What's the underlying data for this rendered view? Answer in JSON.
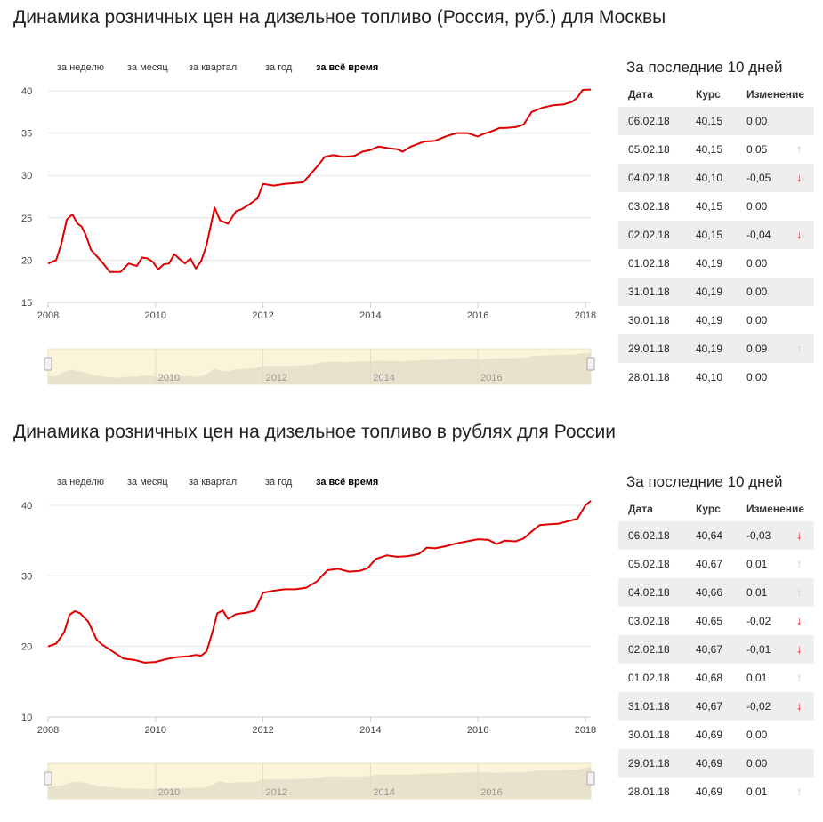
{
  "periods": [
    "за неделю",
    "за месяц",
    "за квартал",
    "за год",
    "за всё время"
  ],
  "active_period": "за всё время",
  "side_title": "За последние 10 дней",
  "table_headers": {
    "date": "Дата",
    "rate": "Курс",
    "change": "Изменение"
  },
  "colors": {
    "line": "#e00000",
    "grid": "#e6e6e6",
    "navigator_bg": "#fcf4d8",
    "navigator_fill": "#e8e2cc",
    "row_alt": "#eeeeee"
  },
  "charts": [
    {
      "title": "Динамика розничных цен на дизельное топливо (Россия, руб.) для Москвы",
      "chart_data": {
        "type": "line",
        "title": "Динамика розничных цен на дизельное топливо (Россия, руб.) для Москвы",
        "xlabel": "",
        "ylabel": "",
        "xlim": [
          2008,
          2018.1
        ],
        "ylim": [
          15,
          40
        ],
        "yticks": [
          15,
          20,
          25,
          30,
          35,
          40
        ],
        "xticks": [
          2008,
          2010,
          2012,
          2014,
          2016,
          2018
        ],
        "navigator_ticks": [
          2010,
          2012,
          2014,
          2016
        ],
        "grid": true,
        "series": [
          {
            "x": [
              2008.0,
              2008.15,
              2008.25,
              2008.35,
              2008.45,
              2008.55,
              2008.62,
              2008.7,
              2008.8,
              2008.9,
              2009.0,
              2009.15,
              2009.35,
              2009.5,
              2009.65,
              2009.75,
              2009.85,
              2009.95,
              2010.05,
              2010.15,
              2010.25,
              2010.35,
              2010.45,
              2010.55,
              2010.65,
              2010.75,
              2010.85,
              2010.95,
              2011.1,
              2011.2,
              2011.35,
              2011.5,
              2011.6,
              2011.75,
              2011.9,
              2012.0,
              2012.2,
              2012.4,
              2012.6,
              2012.75,
              2012.85,
              2013.0,
              2013.15,
              2013.3,
              2013.5,
              2013.7,
              2013.85,
              2014.0,
              2014.15,
              2014.35,
              2014.5,
              2014.6,
              2014.75,
              2015.0,
              2015.2,
              2015.4,
              2015.6,
              2015.8,
              2016.0,
              2016.1,
              2016.25,
              2016.4,
              2016.5,
              2016.7,
              2016.85,
              2017.0,
              2017.2,
              2017.4,
              2017.6,
              2017.75,
              2017.85,
              2017.95,
              2018.05,
              2018.1
            ],
            "y": [
              19.6,
              20.0,
              22.0,
              24.8,
              25.4,
              24.3,
              24.0,
              23.0,
              21.2,
              20.5,
              19.8,
              18.6,
              18.6,
              19.6,
              19.3,
              20.3,
              20.2,
              19.8,
              18.9,
              19.5,
              19.6,
              20.7,
              20.1,
              19.6,
              20.2,
              19.0,
              19.9,
              21.8,
              26.2,
              24.7,
              24.3,
              25.8,
              26.0,
              26.6,
              27.3,
              29.0,
              28.8,
              29.0,
              29.1,
              29.2,
              29.9,
              31.0,
              32.2,
              32.4,
              32.2,
              32.3,
              32.8,
              33.0,
              33.4,
              33.2,
              33.1,
              32.8,
              33.4,
              34.0,
              34.1,
              34.6,
              35.0,
              35.0,
              34.6,
              34.9,
              35.2,
              35.6,
              35.6,
              35.7,
              36.0,
              37.5,
              38.0,
              38.3,
              38.4,
              38.7,
              39.2,
              40.1,
              40.15,
              40.15
            ]
          }
        ]
      },
      "rows": [
        {
          "date": "06.02.18",
          "rate": "40,15",
          "change": "0,00",
          "arrow": ""
        },
        {
          "date": "05.02.18",
          "rate": "40,15",
          "change": "0,05",
          "arrow": "up"
        },
        {
          "date": "04.02.18",
          "rate": "40,10",
          "change": "-0,05",
          "arrow": "down"
        },
        {
          "date": "03.02.18",
          "rate": "40,15",
          "change": "0,00",
          "arrow": ""
        },
        {
          "date": "02.02.18",
          "rate": "40,15",
          "change": "-0,04",
          "arrow": "down"
        },
        {
          "date": "01.02.18",
          "rate": "40,19",
          "change": "0,00",
          "arrow": ""
        },
        {
          "date": "31.01.18",
          "rate": "40,19",
          "change": "0,00",
          "arrow": ""
        },
        {
          "date": "30.01.18",
          "rate": "40,19",
          "change": "0,00",
          "arrow": ""
        },
        {
          "date": "29.01.18",
          "rate": "40,19",
          "change": "0,09",
          "arrow": "up"
        },
        {
          "date": "28.01.18",
          "rate": "40,10",
          "change": "0,00",
          "arrow": ""
        }
      ]
    },
    {
      "title": "Динамика розничных цен на дизельное топливо в рублях для России",
      "chart_data": {
        "type": "line",
        "title": "Динамика розничных цен на дизельное топливо в рублях для России",
        "xlabel": "",
        "ylabel": "",
        "xlim": [
          2008,
          2018.1
        ],
        "ylim": [
          10,
          40
        ],
        "yticks": [
          10,
          20,
          30,
          40
        ],
        "xticks": [
          2008,
          2010,
          2012,
          2014,
          2016,
          2018
        ],
        "navigator_ticks": [
          2010,
          2012,
          2014,
          2016
        ],
        "grid": true,
        "series": [
          {
            "x": [
              2008.0,
              2008.15,
              2008.3,
              2008.4,
              2008.5,
              2008.6,
              2008.75,
              2008.9,
              2009.0,
              2009.2,
              2009.4,
              2009.6,
              2009.8,
              2010.0,
              2010.2,
              2010.4,
              2010.6,
              2010.75,
              2010.85,
              2010.95,
              2011.05,
              2011.15,
              2011.25,
              2011.35,
              2011.5,
              2011.7,
              2011.85,
              2012.0,
              2012.2,
              2012.4,
              2012.6,
              2012.8,
              2013.0,
              2013.2,
              2013.4,
              2013.6,
              2013.8,
              2013.95,
              2014.1,
              2014.3,
              2014.5,
              2014.7,
              2014.9,
              2015.05,
              2015.2,
              2015.4,
              2015.6,
              2015.8,
              2016.0,
              2016.2,
              2016.35,
              2016.5,
              2016.7,
              2016.85,
              2017.0,
              2017.15,
              2017.3,
              2017.5,
              2017.7,
              2017.85,
              2018.0,
              2018.1
            ],
            "y": [
              20.0,
              20.4,
              22.0,
              24.5,
              25.0,
              24.7,
              23.5,
              21.0,
              20.3,
              19.3,
              18.3,
              18.1,
              17.7,
              17.8,
              18.2,
              18.5,
              18.6,
              18.8,
              18.7,
              19.3,
              21.8,
              24.7,
              25.1,
              23.9,
              24.6,
              24.8,
              25.1,
              27.6,
              27.9,
              28.1,
              28.1,
              28.3,
              29.2,
              30.8,
              31.0,
              30.6,
              30.7,
              31.1,
              32.4,
              32.9,
              32.7,
              32.8,
              33.1,
              34.0,
              33.9,
              34.2,
              34.6,
              34.9,
              35.2,
              35.1,
              34.5,
              35.0,
              34.9,
              35.3,
              36.3,
              37.2,
              37.3,
              37.4,
              37.8,
              38.1,
              40.0,
              40.64
            ]
          }
        ]
      },
      "rows": [
        {
          "date": "06.02.18",
          "rate": "40,64",
          "change": "-0,03",
          "arrow": "down"
        },
        {
          "date": "05.02.18",
          "rate": "40,67",
          "change": "0,01",
          "arrow": "up"
        },
        {
          "date": "04.02.18",
          "rate": "40,66",
          "change": "0,01",
          "arrow": "up"
        },
        {
          "date": "03.02.18",
          "rate": "40,65",
          "change": "-0,02",
          "arrow": "down"
        },
        {
          "date": "02.02.18",
          "rate": "40,67",
          "change": "-0,01",
          "arrow": "down"
        },
        {
          "date": "01.02.18",
          "rate": "40,68",
          "change": "0,01",
          "arrow": "up"
        },
        {
          "date": "31.01.18",
          "rate": "40,67",
          "change": "-0,02",
          "arrow": "down"
        },
        {
          "date": "30.01.18",
          "rate": "40,69",
          "change": "0,00",
          "arrow": ""
        },
        {
          "date": "29.01.18",
          "rate": "40,69",
          "change": "0,00",
          "arrow": ""
        },
        {
          "date": "28.01.18",
          "rate": "40,69",
          "change": "0,01",
          "arrow": "up"
        }
      ]
    }
  ]
}
